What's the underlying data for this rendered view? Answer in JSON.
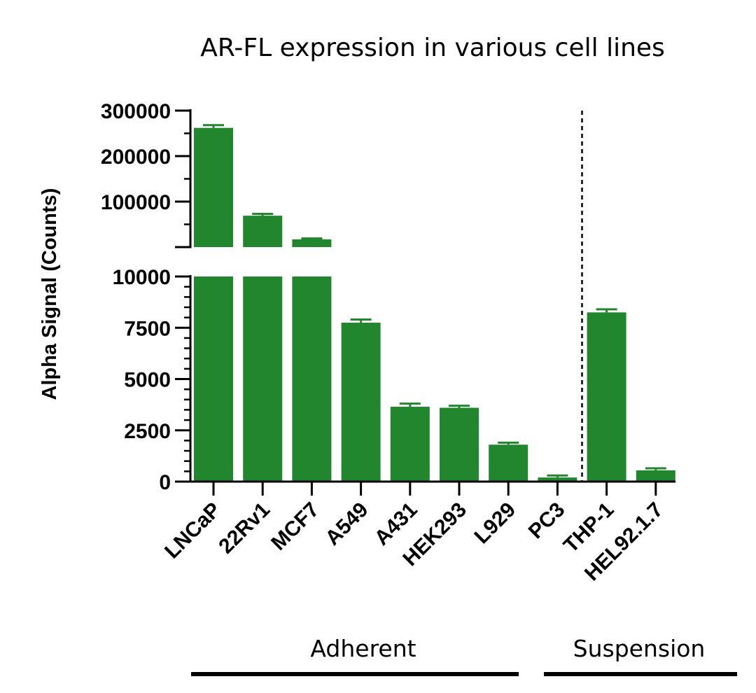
{
  "chart_data": {
    "type": "bar",
    "title": "AR-FL expression in various cell lines",
    "ylabel": "Alpha Signal (Counts)",
    "xlabel": "",
    "categories": [
      "LNCaP",
      "22Rv1",
      "MCF7",
      "A549",
      "A431",
      "HEK293",
      "L929",
      "PC3",
      "THP-1",
      "HEL92.1.7"
    ],
    "values": [
      262000,
      69000,
      17000,
      7750,
      3650,
      3600,
      1800,
      200,
      8250,
      550
    ],
    "errors": [
      6000,
      4000,
      2000,
      150,
      150,
      100,
      100,
      100,
      150,
      100
    ],
    "color": "#22862e",
    "axis_break": {
      "lower": {
        "range": [
          0,
          10000
        ],
        "ticks": [
          "0",
          "2500",
          "5000",
          "7500",
          "10000"
        ],
        "tick_values": [
          0,
          2500,
          5000,
          7500,
          10000
        ]
      },
      "upper": {
        "range": [
          0,
          300000
        ],
        "ticks": [
          "100000",
          "200000",
          "300000"
        ],
        "tick_values": [
          100000,
          200000,
          300000
        ]
      }
    },
    "groups": [
      {
        "label": "Adherent",
        "categories": [
          "LNCaP",
          "22Rv1",
          "MCF7",
          "A549",
          "A431",
          "HEK293",
          "L929",
          "PC3"
        ]
      },
      {
        "label": "Suspension",
        "categories": [
          "THP-1",
          "HEL92.1.7"
        ]
      }
    ],
    "divider": "dashed line between PC3 and THP-1",
    "grid": false,
    "legend": "none"
  }
}
